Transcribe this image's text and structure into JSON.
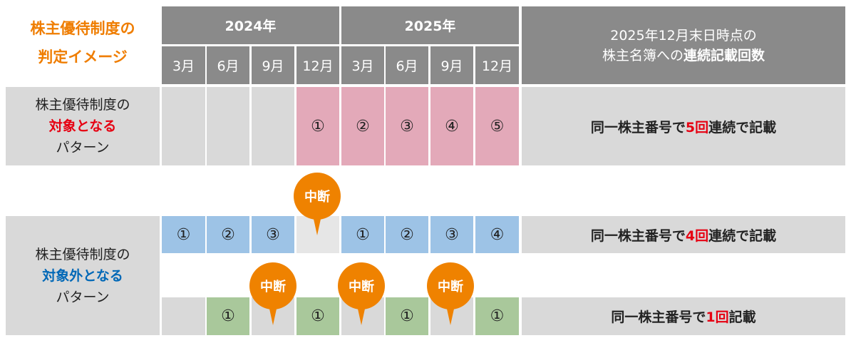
{
  "title": {
    "line1": "株主優待制度の",
    "line2": "判定イメージ"
  },
  "years": [
    "2024年",
    "2025年"
  ],
  "months": [
    "3月",
    "6月",
    "9月",
    "12月",
    "3月",
    "6月",
    "9月",
    "12月"
  ],
  "summary_header": {
    "line1": "2025年12月末日時点の",
    "line2_normal": "株主名簿への",
    "line2_bold": "連続記載回数"
  },
  "eligible": {
    "label": {
      "line1": "株主優待制度の",
      "line2": "対象となる",
      "line3": "パターン"
    },
    "cells": [
      "",
      "",
      "",
      "①",
      "②",
      "③",
      "④",
      "⑤"
    ],
    "summary": {
      "pre": "同一株主番号で",
      "count": "5回",
      "post": "連続で記載"
    }
  },
  "ineligible": {
    "label": {
      "line1": "株主優待制度の",
      "line2": "対象外となる",
      "line3": "パターン"
    },
    "row_a": {
      "cells": [
        "①",
        "②",
        "③",
        "",
        "①",
        "②",
        "③",
        "④"
      ],
      "summary": {
        "pre": "同一株主番号で",
        "count": "4回",
        "post": "連続で記載"
      }
    },
    "row_b": {
      "cells": [
        "",
        "①",
        "",
        "①",
        "",
        "①",
        "",
        "①"
      ],
      "summary": {
        "pre": "同一株主番号で",
        "count": "1回",
        "post": "記載"
      }
    }
  },
  "interrupt_label": "中断",
  "colors": {
    "header": "#8a8a8a",
    "empty": "#d9d9d9",
    "pink": "#e3a9b9",
    "blue": "#9dc3e6",
    "green": "#a9c89b",
    "orange": "#ef8200",
    "red": "#e60012",
    "blue_text": "#0068b7"
  }
}
